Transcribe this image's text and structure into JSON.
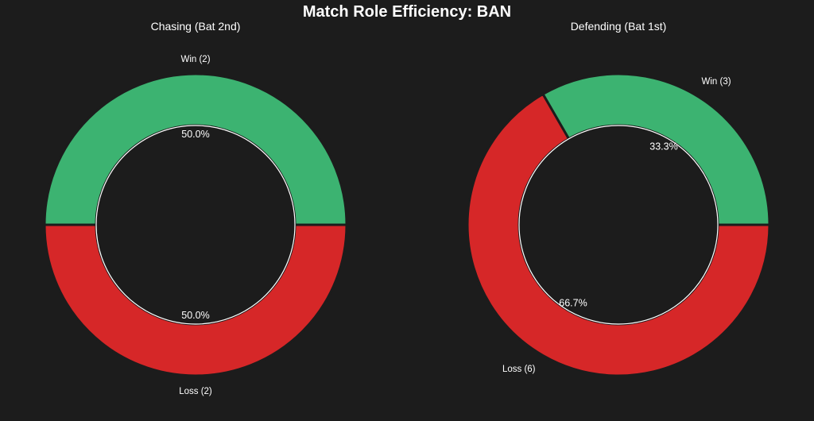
{
  "title": "Match Role Efficiency: BAN",
  "chart_data": [
    {
      "type": "pie",
      "subtitle": "Chasing (Bat 2nd)",
      "slices": [
        {
          "label": "Win (2)",
          "value": 2,
          "percent_label": "50.0%",
          "color": "#3cb371"
        },
        {
          "label": "Loss (2)",
          "value": 2,
          "percent_label": "50.0%",
          "color": "#d62728"
        }
      ]
    },
    {
      "type": "pie",
      "subtitle": "Defending (Bat 1st)",
      "slices": [
        {
          "label": "Win (3)",
          "value": 3,
          "percent_label": "33.3%",
          "color": "#3cb371"
        },
        {
          "label": "Loss (6)",
          "value": 6,
          "percent_label": "66.7%",
          "color": "#d62728"
        }
      ]
    }
  ],
  "style": {
    "background": "#1c1c1c",
    "text_color": "#ffffff",
    "separator_color": "#1c1c1c",
    "inner_ring_color": "#ffffff"
  }
}
